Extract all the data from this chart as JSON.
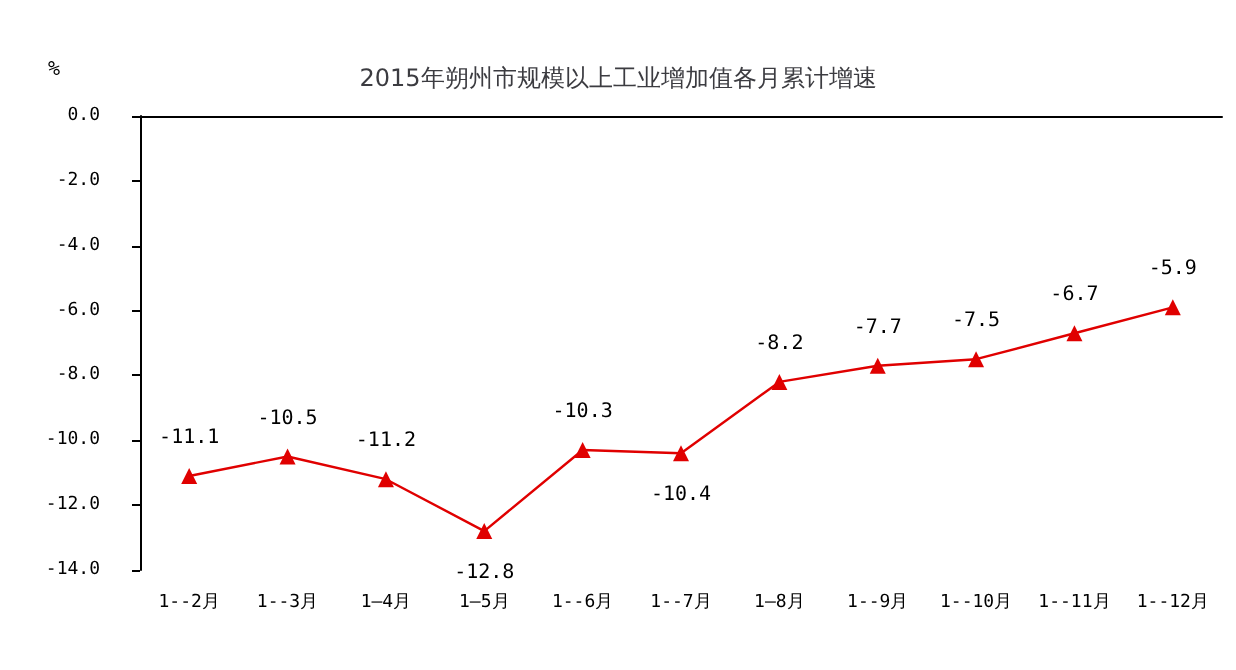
{
  "chart_data": {
    "type": "line",
    "title": "2015年朔州市规模以上工业增加值各月累计增速",
    "ylabel": "%",
    "categories": [
      "1--2月",
      "1--3月",
      "1—4月",
      "1—5月",
      "1--6月",
      "1--7月",
      "1—8月",
      "1--9月",
      "1--10月",
      "1--11月",
      "1--12月"
    ],
    "series": [
      {
        "color": "#e00000",
        "values": [
          -11.1,
          -10.5,
          -11.2,
          -12.8,
          -10.3,
          -10.4,
          -8.2,
          -7.7,
          -7.5,
          -6.7,
          -5.9
        ]
      }
    ],
    "ylim": [
      -14,
      0
    ],
    "yticks": [
      {
        "value": 0,
        "label": "0.0"
      },
      {
        "value": -2,
        "label": "-2.0"
      },
      {
        "value": -4,
        "label": "-4.0"
      },
      {
        "value": -6,
        "label": "-6.0"
      },
      {
        "value": -8,
        "label": "-8.0"
      },
      {
        "value": -10,
        "label": "-10.0"
      },
      {
        "value": -12,
        "label": "-12.0"
      },
      {
        "value": -14,
        "label": "-14.0"
      }
    ],
    "data_labels": true,
    "grid": false,
    "marker": "triangle",
    "line_style": "solid"
  }
}
